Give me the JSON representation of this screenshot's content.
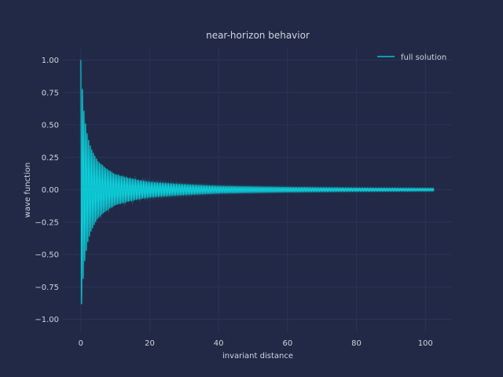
{
  "chart_data": {
    "type": "line",
    "title": "near-horizon behavior",
    "xlabel": "invariant distance",
    "ylabel": "wave function",
    "xlim": [
      -5.2,
      107.7
    ],
    "ylim": [
      -1.1,
      1.1
    ],
    "grid": true,
    "legend_position": "top-right",
    "x_ticks": [
      0,
      20,
      40,
      60,
      80,
      100
    ],
    "x_tick_labels": [
      "0",
      "20",
      "40",
      "60",
      "80",
      "100"
    ],
    "y_ticks": [
      1.0,
      0.75,
      0.5,
      0.25,
      0.0,
      -0.25,
      -0.5,
      -0.75,
      -1.0
    ],
    "y_tick_labels": [
      "1.00",
      "0.75",
      "0.50",
      "0.25",
      "0.00",
      "−0.25",
      "−0.50",
      "−0.75",
      "−1.00"
    ],
    "series": [
      {
        "name": "full solution",
        "color": "#08F7FE",
        "x_range": [
          0,
          102.5
        ],
        "envelope": [
          {
            "x": 0,
            "amplitude": 1.0
          },
          {
            "x": 1,
            "amplitude": 0.58
          },
          {
            "x": 2,
            "amplitude": 0.41
          },
          {
            "x": 3,
            "amplitude": 0.32
          },
          {
            "x": 5,
            "amplitude": 0.22
          },
          {
            "x": 10,
            "amplitude": 0.12
          },
          {
            "x": 20,
            "amplitude": 0.058
          },
          {
            "x": 40,
            "amplitude": 0.028
          },
          {
            "x": 60,
            "amplitude": 0.019
          },
          {
            "x": 80,
            "amplitude": 0.014
          },
          {
            "x": 102.5,
            "amplitude": 0.011
          }
        ],
        "oscillations_per_unit": 2.2
      }
    ]
  },
  "colors": {
    "background": "#212946",
    "grid": "#2A3459",
    "text": "#D0D4DC",
    "line": "#08F7FE"
  }
}
